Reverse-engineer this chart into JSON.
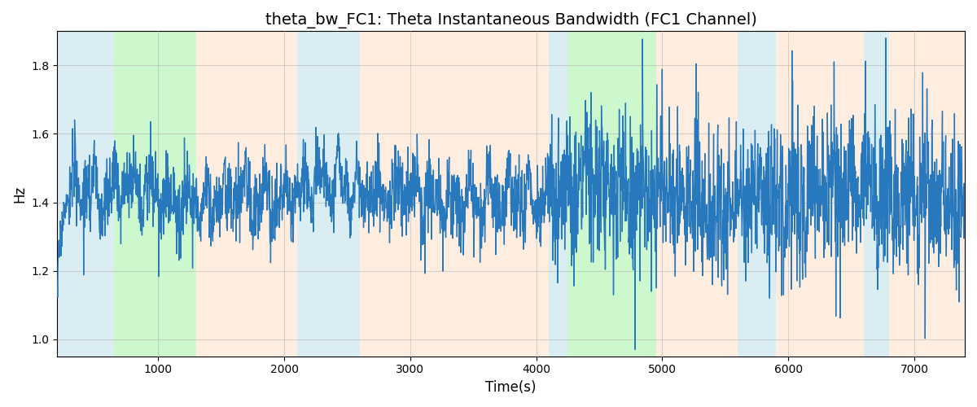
{
  "title": "theta_bw_FC1: Theta Instantaneous Bandwidth (FC1 Channel)",
  "xlabel": "Time(s)",
  "ylabel": "Hz",
  "xlim": [
    200,
    7400
  ],
  "ylim": [
    0.95,
    1.9
  ],
  "yticks": [
    1.0,
    1.2,
    1.4,
    1.6,
    1.8
  ],
  "xticks": [
    1000,
    2000,
    3000,
    4000,
    5000,
    6000,
    7000
  ],
  "background_regions": [
    {
      "xmin": 200,
      "xmax": 650,
      "color": "#ADD8E6",
      "alpha": 0.45
    },
    {
      "xmin": 650,
      "xmax": 1300,
      "color": "#90EE90",
      "alpha": 0.45
    },
    {
      "xmin": 1300,
      "xmax": 2100,
      "color": "#FFDAB9",
      "alpha": 0.45
    },
    {
      "xmin": 2100,
      "xmax": 2600,
      "color": "#ADD8E6",
      "alpha": 0.45
    },
    {
      "xmin": 2600,
      "xmax": 4100,
      "color": "#FFDAB9",
      "alpha": 0.45
    },
    {
      "xmin": 4100,
      "xmax": 4250,
      "color": "#ADD8E6",
      "alpha": 0.45
    },
    {
      "xmin": 4250,
      "xmax": 4950,
      "color": "#90EE90",
      "alpha": 0.45
    },
    {
      "xmin": 4950,
      "xmax": 5600,
      "color": "#FFDAB9",
      "alpha": 0.45
    },
    {
      "xmin": 5600,
      "xmax": 5900,
      "color": "#ADD8E6",
      "alpha": 0.45
    },
    {
      "xmin": 5900,
      "xmax": 6600,
      "color": "#FFDAB9",
      "alpha": 0.45
    },
    {
      "xmin": 6600,
      "xmax": 6800,
      "color": "#ADD8E6",
      "alpha": 0.45
    },
    {
      "xmin": 6800,
      "xmax": 7400,
      "color": "#FFDAB9",
      "alpha": 0.45
    }
  ],
  "line_color": "#2878BD",
  "line_width": 1.0,
  "seed": 17,
  "title_fontsize": 14,
  "label_fontsize": 12,
  "grid_color": "#b0b0b0",
  "grid_alpha": 0.5,
  "grid_linewidth": 0.8
}
